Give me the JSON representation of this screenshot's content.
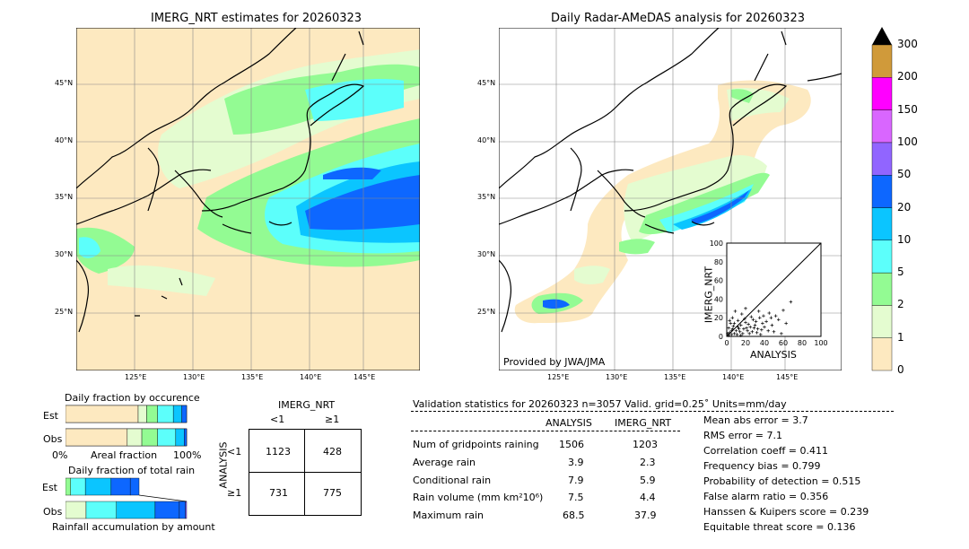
{
  "chart_data": {
    "type": "map",
    "maps": [
      {
        "title": "IMERG_NRT estimates for 20260323"
      },
      {
        "title": "Daily Radar-AMeDAS analysis for 20260323",
        "credit": "Provided by JWA/JMA"
      }
    ],
    "lat_ticks": [
      "25°N",
      "30°N",
      "35°N",
      "40°N",
      "45°N"
    ],
    "lon_ticks": [
      "125°E",
      "130°E",
      "135°E",
      "140°E",
      "145°E"
    ],
    "colorbar": {
      "levels": [
        "0",
        "1",
        "2",
        "5",
        "10",
        "20",
        "50",
        "100",
        "150",
        "200",
        "300"
      ],
      "colors": [
        "#fde9c0",
        "#e4fcd0",
        "#93fb93",
        "#5cfffb",
        "#0bc5ff",
        "#0d67ff",
        "#9165ff",
        "#d966ff",
        "#ff00ff",
        "#d09a3a"
      ],
      "extend_color": "#000000"
    },
    "scatter": {
      "xlabel": "ANALYSIS",
      "ylabel": "IMERG_NRT",
      "xlim": [
        0,
        100
      ],
      "ylim": [
        0,
        100
      ],
      "ticks": [
        "0",
        "20",
        "40",
        "60",
        "80",
        "100"
      ],
      "points": [
        [
          2,
          1
        ],
        [
          3,
          4
        ],
        [
          5,
          2
        ],
        [
          6,
          8
        ],
        [
          8,
          3
        ],
        [
          10,
          6
        ],
        [
          12,
          10
        ],
        [
          14,
          5
        ],
        [
          15,
          12
        ],
        [
          18,
          8
        ],
        [
          20,
          15
        ],
        [
          22,
          6
        ],
        [
          25,
          10
        ],
        [
          28,
          18
        ],
        [
          30,
          12
        ],
        [
          33,
          8
        ],
        [
          35,
          20
        ],
        [
          38,
          14
        ],
        [
          40,
          10
        ],
        [
          42,
          16
        ],
        [
          45,
          25
        ],
        [
          48,
          12
        ],
        [
          52,
          22
        ],
        [
          55,
          18
        ],
        [
          60,
          28
        ],
        [
          63,
          14
        ],
        [
          68,
          37
        ],
        [
          4,
          14
        ],
        [
          6,
          20
        ],
        [
          9,
          27
        ],
        [
          12,
          17
        ],
        [
          16,
          24
        ],
        [
          20,
          30
        ],
        [
          26,
          21
        ],
        [
          24,
          3
        ],
        [
          32,
          4
        ],
        [
          36,
          2
        ],
        [
          44,
          6
        ],
        [
          50,
          5
        ],
        [
          58,
          3
        ],
        [
          2,
          9
        ],
        [
          7,
          11
        ],
        [
          11,
          2
        ],
        [
          17,
          3
        ],
        [
          21,
          9
        ],
        [
          27,
          5
        ],
        [
          31,
          16
        ],
        [
          34,
          27
        ],
        [
          39,
          22
        ],
        [
          47,
          20
        ],
        [
          1,
          3
        ],
        [
          3,
          17
        ],
        [
          5,
          6
        ],
        [
          8,
          14
        ],
        [
          13,
          8
        ],
        [
          15,
          1
        ],
        [
          19,
          19
        ],
        [
          23,
          13
        ],
        [
          29,
          9
        ],
        [
          37,
          7
        ]
      ]
    },
    "occurrence": {
      "title": "Daily fraction by occurence",
      "rows": [
        {
          "label": "Est",
          "segments": [
            0.6,
            0.07,
            0.09,
            0.13,
            0.07,
            0.04
          ]
        },
        {
          "label": "Obs",
          "segments": [
            0.51,
            0.12,
            0.13,
            0.15,
            0.07,
            0.02
          ]
        }
      ],
      "axis_left": "0%",
      "axis_mid": "Areal fraction",
      "axis_right": "100%"
    },
    "total_rain": {
      "title": "Daily fraction of total rain",
      "est": [
        0.07,
        0.2,
        0.35,
        0.26,
        0.12
      ],
      "obs": [
        0.17,
        0.25,
        0.32,
        0.2,
        0.05,
        0.01
      ],
      "footer": "Rainfall accumulation by amount"
    },
    "contingency": {
      "col_title": "IMERG_NRT",
      "row_title": "ANALYSIS",
      "col_labels": [
        "<1",
        "≥1"
      ],
      "row_labels": [
        "<1",
        "≥1"
      ],
      "cells": [
        [
          "1123",
          "428"
        ],
        [
          "731",
          "775"
        ]
      ]
    }
  },
  "stats": {
    "header": "Validation statistics for 20260323  n=3057 Valid. grid=0.25˚ Units=mm/day",
    "col_analysis": "ANALYSIS",
    "col_imerg": "IMERG_NRT",
    "rows": [
      {
        "label": "Num of gridpoints raining",
        "analysis": "1506",
        "imerg": "1203"
      },
      {
        "label": "Average rain",
        "analysis": "3.9",
        "imerg": "2.3"
      },
      {
        "label": "Conditional rain",
        "analysis": "7.9",
        "imerg": "5.9"
      },
      {
        "label": "Rain volume (mm km²10⁶)",
        "analysis": "7.5",
        "imerg": "4.4"
      },
      {
        "label": "Maximum rain",
        "analysis": "68.5",
        "imerg": "37.9"
      }
    ],
    "scores": [
      "Mean abs error =    3.7",
      "RMS error =    7.1",
      "Correlation coeff =  0.411",
      "Frequency bias =  0.799",
      "Probability of detection =  0.515",
      "False alarm ratio =  0.356",
      "Hanssen & Kuipers score =  0.239",
      "Equitable threat score =  0.136"
    ]
  }
}
